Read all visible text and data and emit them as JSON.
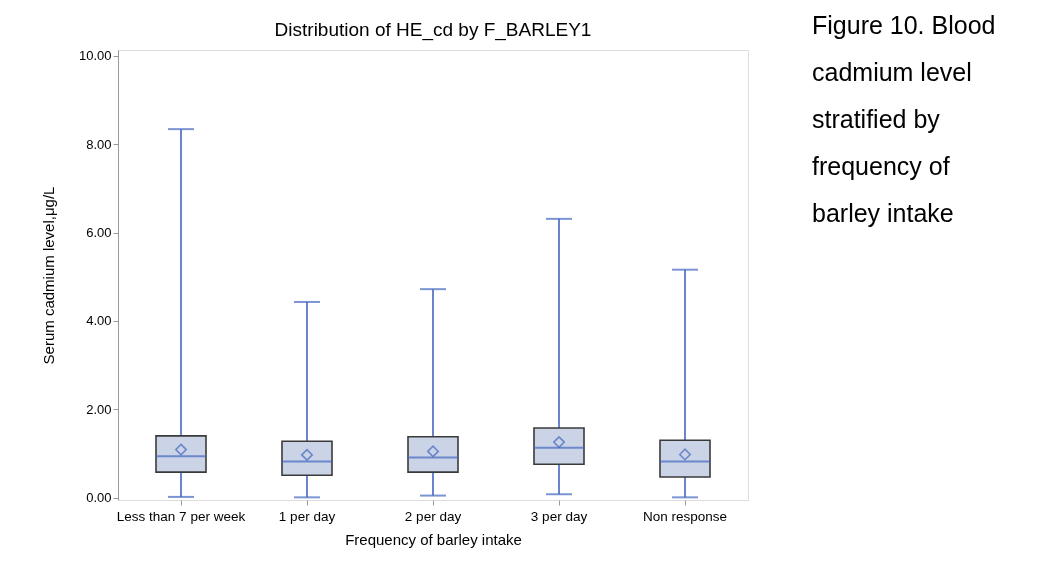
{
  "chart_data": {
    "type": "box",
    "title": "Distribution of HE_cd by F_BARLEY1",
    "xlabel": "Frequency of barley intake",
    "ylabel": "Serum cadmium level,μg/L",
    "categories": [
      "Less than 7 per week",
      "1 per day",
      "2 per day",
      "3 per day",
      "Non response"
    ],
    "series": [
      {
        "color": "#cad4e6",
        "boxes": [
          {
            "low": 0.02,
            "q1": 0.58,
            "median": 0.94,
            "q3": 1.4,
            "high": 8.34,
            "mean": 1.09
          },
          {
            "low": 0.01,
            "q1": 0.51,
            "median": 0.82,
            "q3": 1.28,
            "high": 4.43,
            "mean": 0.97
          },
          {
            "low": 0.05,
            "q1": 0.58,
            "median": 0.91,
            "q3": 1.38,
            "high": 4.72,
            "mean": 1.05
          },
          {
            "low": 0.08,
            "q1": 0.76,
            "median": 1.13,
            "q3": 1.58,
            "high": 6.31,
            "mean": 1.26
          },
          {
            "low": 0.01,
            "q1": 0.47,
            "median": 0.82,
            "q3": 1.3,
            "high": 5.16,
            "mean": 0.98
          }
        ]
      }
    ],
    "marker": "diamond",
    "ylim": [
      -0.05,
      10.13
    ],
    "yticks": [
      {
        "value": 0,
        "label": "0.00"
      },
      {
        "value": 2,
        "label": "2.00"
      },
      {
        "value": 4,
        "label": "4.00"
      },
      {
        "value": 6,
        "label": "6.00"
      },
      {
        "value": 8,
        "label": "8.00"
      },
      {
        "value": 10,
        "label": "10.00"
      }
    ],
    "grid": false,
    "annotations": [
      "Figure 10. Blood cadmium level stratified by frequency of barley intake"
    ]
  }
}
